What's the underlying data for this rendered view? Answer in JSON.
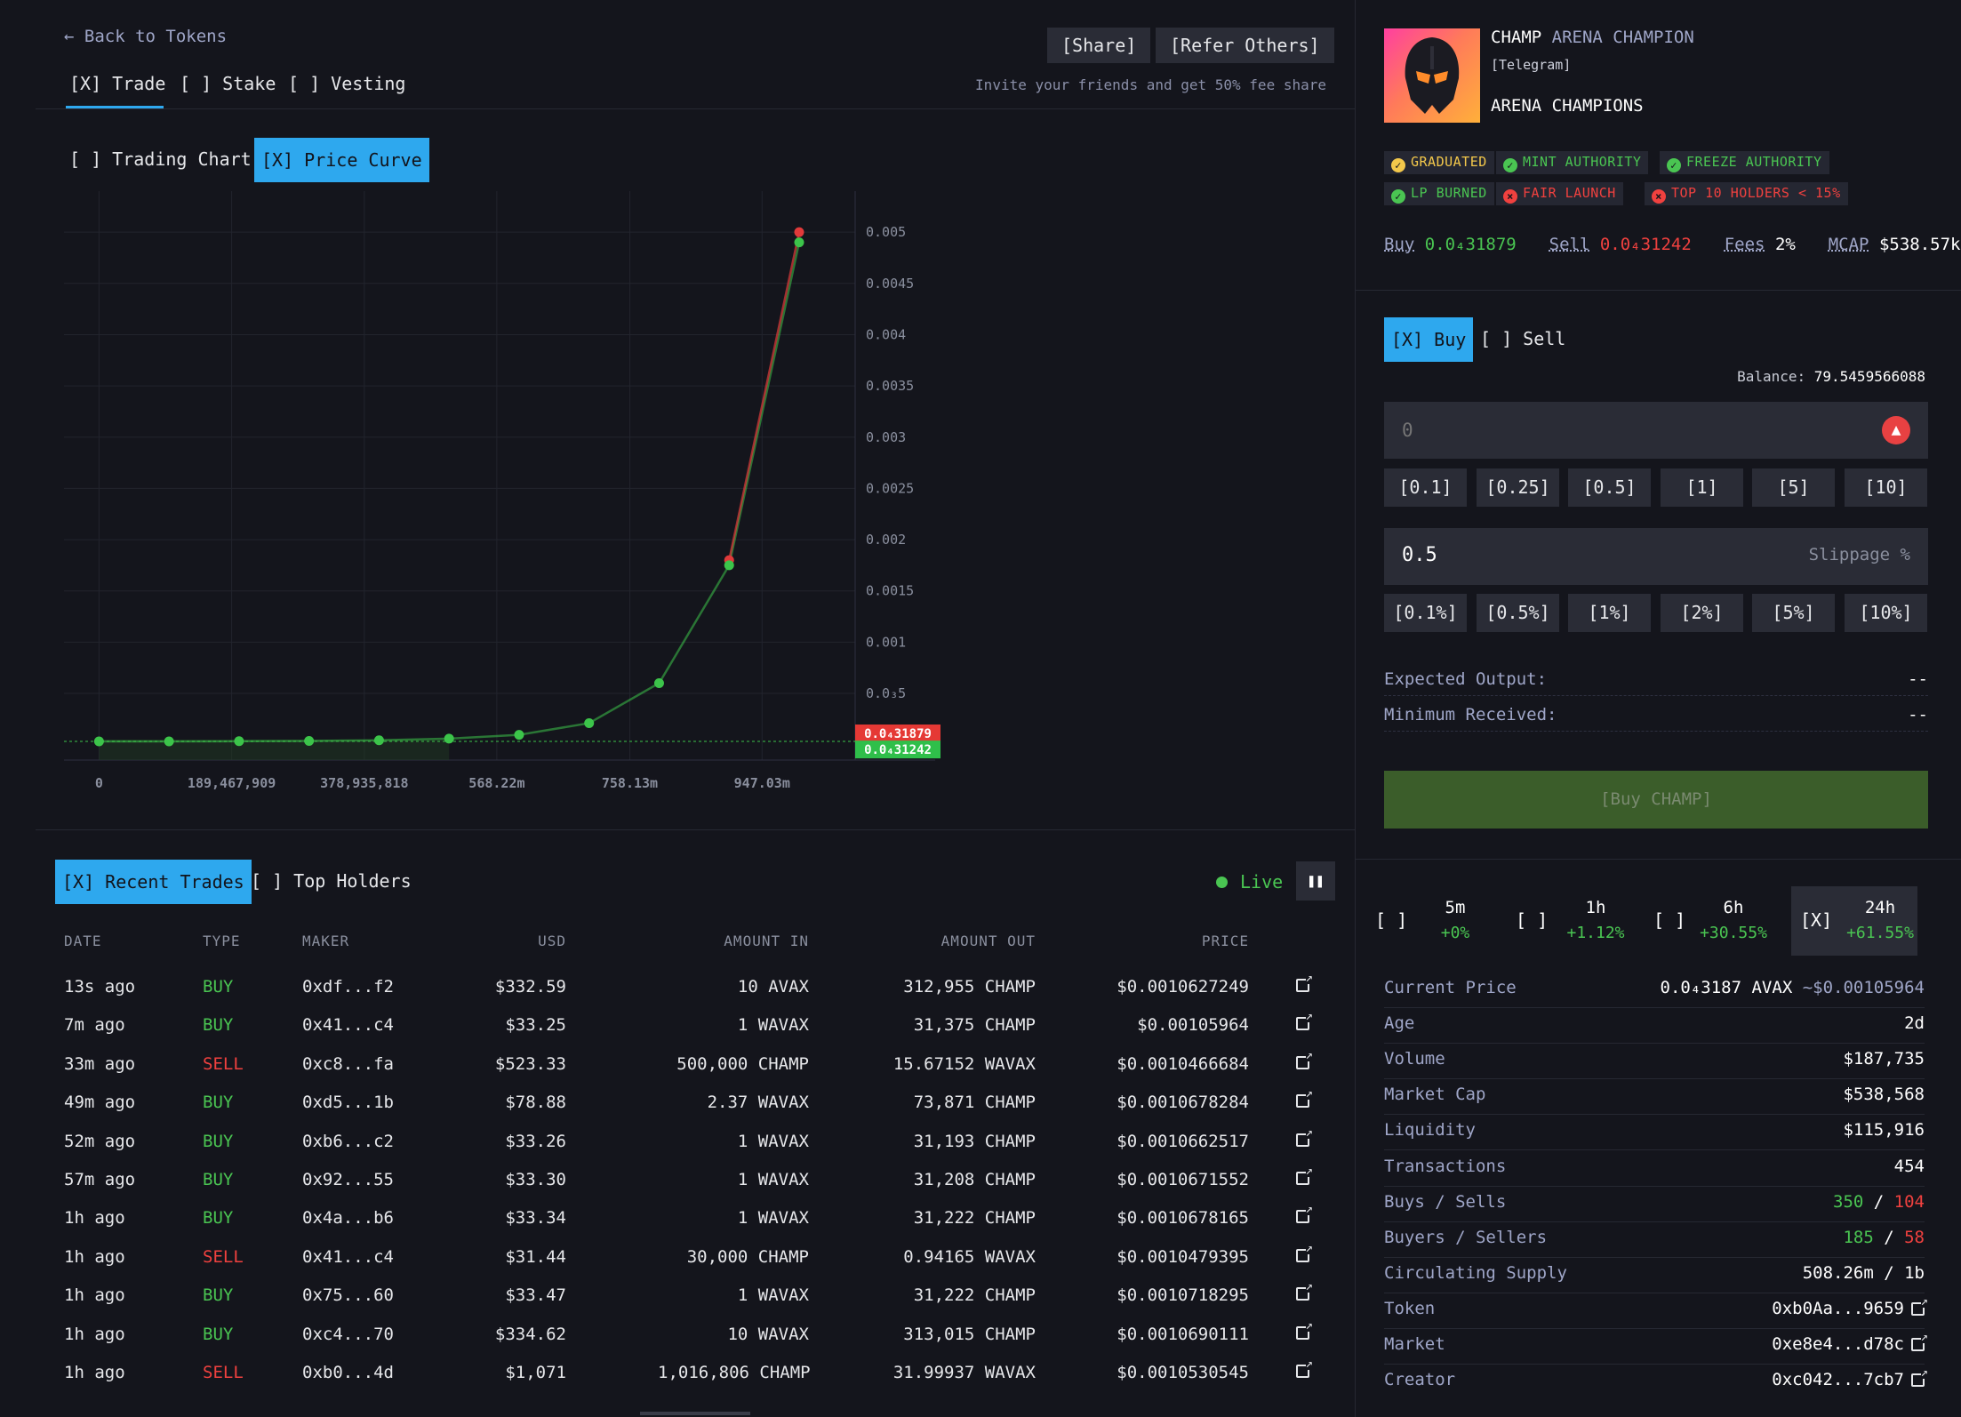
{
  "nav": {
    "back_label": "Back to Tokens",
    "share_label": "[Share]",
    "refer_label": "[Refer Others]",
    "invite_text": "Invite your friends and get 50% fee share",
    "tabs": [
      {
        "label": "[X] Trade",
        "active": true
      },
      {
        "label": "[ ] Stake",
        "active": false
      },
      {
        "label": "[ ] Vesting",
        "active": false
      }
    ]
  },
  "chart_tabs": [
    {
      "label": "[ ] Trading Chart",
      "active": false
    },
    {
      "label": "[X] Price Curve",
      "active": true
    }
  ],
  "chart_data": {
    "type": "line",
    "title": "",
    "x_tick_labels": [
      "0",
      "189,467,909",
      "378,935,818",
      "568.22m",
      "758.13m",
      "947.03m"
    ],
    "x_ticks": [
      0,
      189467909,
      378935818,
      568220000,
      758130000,
      947030000
    ],
    "y_tick_labels": [
      "0.005",
      "0.0045",
      "0.004",
      "0.0035",
      "0.003",
      "0.0025",
      "0.002",
      "0.0015",
      "0.001",
      "0.0₃5"
    ],
    "y_ticks": [
      0.005,
      0.0045,
      0.004,
      0.0035,
      0.003,
      0.0025,
      0.002,
      0.0015,
      0.001,
      0.0005
    ],
    "xlim": [
      -50000000,
      1080000000
    ],
    "ylim": [
      -0.00015,
      0.0054
    ],
    "series": [
      {
        "color": "#3cc44a",
        "x": [
          0,
          100000000,
          200000000,
          300000000,
          400000000,
          500000000,
          600000000,
          700000000,
          800000000,
          900000000,
          1000000000
        ],
        "y": [
          3.19e-05,
          3.25e-05,
          3.4e-05,
          3.68e-05,
          4.3e-05,
          5.9e-05,
          9.6e-05,
          0.00021,
          0.0006,
          0.00175,
          0.0049
        ]
      },
      {
        "color": "#e03a3a",
        "x": [
          900000000,
          1000000000
        ],
        "y": [
          0.0018,
          0.005
        ]
      }
    ],
    "price_tags": [
      {
        "label": "0.0₄31879",
        "value": 3.19e-05,
        "color": "#e53935"
      },
      {
        "label": "0.0₄31242",
        "value": 3.12e-05,
        "color": "#2fbf4a"
      }
    ],
    "grid": true
  },
  "trades": {
    "tabs": [
      {
        "label": "[X] Recent Trades",
        "active": true
      },
      {
        "label": "[ ] Top Holders",
        "active": false
      }
    ],
    "live_label": "Live",
    "pause_icon": "pause-icon",
    "headers": [
      "DATE",
      "TYPE",
      "MAKER",
      "USD",
      "AMOUNT IN",
      "AMOUNT OUT",
      "PRICE"
    ],
    "rows": [
      {
        "date": "13s ago",
        "type": "BUY",
        "maker": "0xdf...f2",
        "usd": "$332.59",
        "in": "10 AVAX",
        "out": "312,955 CHAMP",
        "price": "$0.0010627249"
      },
      {
        "date": "7m ago",
        "type": "BUY",
        "maker": "0x41...c4",
        "usd": "$33.25",
        "in": "1 WAVAX",
        "out": "31,375 CHAMP",
        "price": "$0.00105964"
      },
      {
        "date": "33m ago",
        "type": "SELL",
        "maker": "0xc8...fa",
        "usd": "$523.33",
        "in": "500,000 CHAMP",
        "out": "15.67152 WAVAX",
        "price": "$0.0010466684"
      },
      {
        "date": "49m ago",
        "type": "BUY",
        "maker": "0xd5...1b",
        "usd": "$78.88",
        "in": "2.37 WAVAX",
        "out": "73,871 CHAMP",
        "price": "$0.0010678284"
      },
      {
        "date": "52m ago",
        "type": "BUY",
        "maker": "0xb6...c2",
        "usd": "$33.26",
        "in": "1 WAVAX",
        "out": "31,193 CHAMP",
        "price": "$0.0010662517"
      },
      {
        "date": "57m ago",
        "type": "BUY",
        "maker": "0x92...55",
        "usd": "$33.30",
        "in": "1 WAVAX",
        "out": "31,208 CHAMP",
        "price": "$0.0010671552"
      },
      {
        "date": "1h ago",
        "type": "BUY",
        "maker": "0x4a...b6",
        "usd": "$33.34",
        "in": "1 WAVAX",
        "out": "31,222 CHAMP",
        "price": "$0.0010678165"
      },
      {
        "date": "1h ago",
        "type": "SELL",
        "maker": "0x41...c4",
        "usd": "$31.44",
        "in": "30,000 CHAMP",
        "out": "0.94165 WAVAX",
        "price": "$0.0010479395"
      },
      {
        "date": "1h ago",
        "type": "BUY",
        "maker": "0x75...60",
        "usd": "$33.47",
        "in": "1 WAVAX",
        "out": "31,222 CHAMP",
        "price": "$0.0010718295"
      },
      {
        "date": "1h ago",
        "type": "BUY",
        "maker": "0xc4...70",
        "usd": "$334.62",
        "in": "10 WAVAX",
        "out": "313,015 CHAMP",
        "price": "$0.0010690111"
      },
      {
        "date": "1h ago",
        "type": "SELL",
        "maker": "0xb0...4d",
        "usd": "$1,071",
        "in": "1,016,806 CHAMP",
        "out": "31.99937 WAVAX",
        "price": "$0.0010530545"
      }
    ]
  },
  "token": {
    "symbol": "CHAMP",
    "name": "ARENA CHAMPION",
    "social": "[Telegram]",
    "description": "ARENA CHAMPIONS",
    "badges": [
      {
        "label": "GRADUATED",
        "status": "warn",
        "color": "#f3c84b"
      },
      {
        "label": "MINT AUTHORITY",
        "status": "ok",
        "color": "#4ac552"
      },
      {
        "label": "FREEZE AUTHORITY",
        "status": "ok",
        "color": "#4ac552"
      },
      {
        "label": "LP BURNED",
        "status": "ok",
        "color": "#4ac552"
      },
      {
        "label": "FAIR LAUNCH",
        "status": "bad",
        "color": "#f0413f"
      },
      {
        "label": "TOP 10 HOLDERS < 15%",
        "status": "bad",
        "color": "#f0413f"
      }
    ],
    "quick": {
      "buy_label": "Buy",
      "buy_value": "0.0₄31879",
      "sell_label": "Sell",
      "sell_value": "0.0₄31242",
      "fees_label": "Fees",
      "fees_value": "2%",
      "mcap_label": "MCAP",
      "mcap_value": "$538.57k"
    }
  },
  "swap": {
    "tabs": [
      {
        "label": "[X] Buy",
        "active": true
      },
      {
        "label": "[ ] Sell",
        "active": false
      }
    ],
    "balance_label": "Balance:",
    "balance_value": "79.5459566088",
    "amount_placeholder": "0",
    "amount_presets": [
      "[0.1]",
      "[0.25]",
      "[0.5]",
      "[1]",
      "[5]",
      "[10]"
    ],
    "slippage_value": "0.5",
    "slippage_label": "Slippage %",
    "slippage_presets": [
      "[0.1%]",
      "[0.5%]",
      "[1%]",
      "[2%]",
      "[5%]",
      "[10%]"
    ],
    "expected_label": "Expected Output:",
    "expected_value": "--",
    "minimum_label": "Minimum Received:",
    "minimum_value": "--",
    "submit_label": "[Buy CHAMP]"
  },
  "timeframes": [
    {
      "box": "[ ]",
      "label": "5m",
      "change": "+0%",
      "active": false
    },
    {
      "box": "[ ]",
      "label": "1h",
      "change": "+1.12%",
      "active": false
    },
    {
      "box": "[ ]",
      "label": "6h",
      "change": "+30.55%",
      "active": false
    },
    {
      "box": "[X]",
      "label": "24h",
      "change": "+61.55%",
      "active": true
    }
  ],
  "stats": {
    "current_price_label": "Current Price",
    "current_price_value": "0.0₄3187 AVAX",
    "current_price_usd": "~$0.00105964",
    "age_label": "Age",
    "age_value": "2d",
    "volume_label": "Volume",
    "volume_value": "$187,735",
    "mcap_label": "Market Cap",
    "mcap_value": "$538,568",
    "liquidity_label": "Liquidity",
    "liquidity_value": "$115,916",
    "tx_label": "Transactions",
    "tx_value": "454",
    "buys_sells_label": "Buys / Sells",
    "buys_value": "350",
    "sells_value": "104",
    "buyers_sellers_label": "Buyers / Sellers",
    "buyers_value": "185",
    "sellers_value": "58",
    "supply_label": "Circulating Supply",
    "supply_value": "508.26m / 1b",
    "token_label": "Token",
    "token_value": "0xb0Aa...9659",
    "market_label": "Market",
    "market_value": "0xe8e4...d78c",
    "creator_label": "Creator",
    "creator_value": "0xc042...7cb7"
  },
  "colors": {
    "accent": "#2ea8ee",
    "buy": "#4ac552",
    "sell": "#f0413f",
    "background": "#14151c"
  }
}
